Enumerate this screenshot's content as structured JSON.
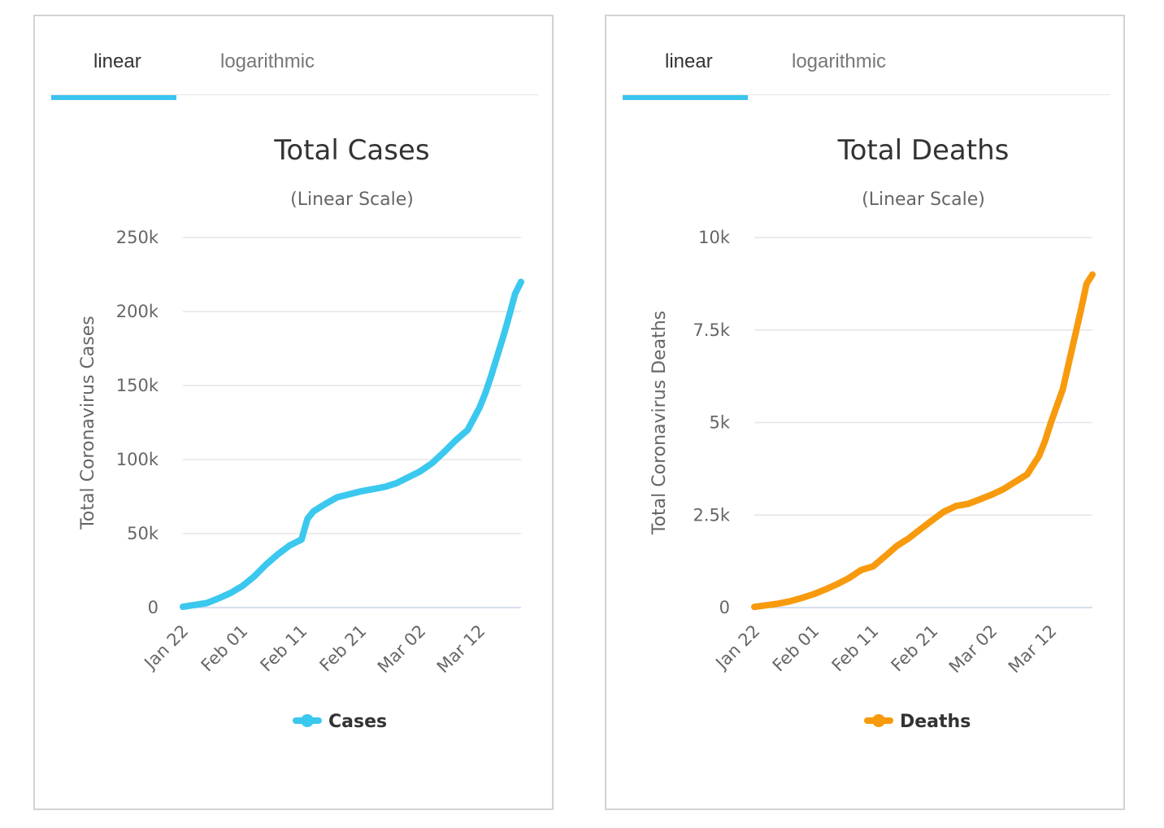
{
  "panels": [
    {
      "tabs": {
        "linear": "linear",
        "logarithmic": "logarithmic"
      },
      "legend": {
        "label": "Cases"
      }
    },
    {
      "tabs": {
        "linear": "linear",
        "logarithmic": "logarithmic"
      },
      "legend": {
        "label": "Deaths"
      }
    }
  ],
  "chart_data": [
    {
      "type": "line",
      "title": "Total Cases",
      "subtitle": "(Linear Scale)",
      "ylabel": "Total Coronavirus Cases",
      "xlabel": "",
      "color": "#3bc8ef",
      "ylim": [
        0,
        250000
      ],
      "yticks": [
        0,
        50000,
        100000,
        150000,
        200000,
        250000
      ],
      "ytick_labels": [
        "0",
        "50k",
        "100k",
        "150k",
        "200k",
        "250k"
      ],
      "xtick_days": [
        0,
        10,
        20,
        30,
        40,
        50
      ],
      "xtick_labels": [
        "Jan 22",
        "Feb 01",
        "Feb 11",
        "Feb 21",
        "Mar 02",
        "Mar 12"
      ],
      "xlim": [
        0,
        57
      ],
      "series": [
        {
          "name": "Cases",
          "x": [
            0,
            4,
            6,
            8,
            10,
            12,
            14,
            16,
            18,
            20,
            20.5,
            21,
            22,
            24,
            26,
            28,
            30,
            32,
            34,
            36,
            38,
            40,
            42,
            44,
            46,
            48,
            50,
            51,
            52,
            53,
            54,
            55,
            56,
            57
          ],
          "values": [
            550,
            3000,
            6200,
            9800,
            14500,
            21000,
            29000,
            36000,
            42000,
            46000,
            53000,
            60000,
            65000,
            70000,
            74500,
            76500,
            78500,
            80000,
            81500,
            84000,
            88000,
            92000,
            97500,
            105000,
            113000,
            120000,
            135000,
            145000,
            157000,
            170000,
            183000,
            197000,
            212000,
            220000
          ]
        }
      ]
    },
    {
      "type": "line",
      "title": "Total Deaths",
      "subtitle": "(Linear Scale)",
      "ylabel": "Total Coronavirus Deaths",
      "xlabel": "",
      "color": "#f79a0d",
      "ylim": [
        0,
        10000
      ],
      "yticks": [
        0,
        2500,
        5000,
        7500,
        10000
      ],
      "ytick_labels": [
        "0",
        "2.5k",
        "5k",
        "7.5k",
        "10k"
      ],
      "xtick_days": [
        0,
        10,
        20,
        30,
        40,
        50
      ],
      "xtick_labels": [
        "Jan 22",
        "Feb 01",
        "Feb 11",
        "Feb 21",
        "Mar 02",
        "Mar 12"
      ],
      "xlim": [
        0,
        57
      ],
      "series": [
        {
          "name": "Deaths",
          "x": [
            0,
            4,
            6,
            8,
            10,
            12,
            14,
            16,
            18,
            20,
            22,
            24,
            26,
            28,
            30,
            32,
            33,
            34,
            36,
            38,
            40,
            42,
            44,
            46,
            47,
            48,
            49,
            50,
            51,
            52,
            53,
            54,
            55,
            56,
            57
          ],
          "values": [
            17,
            106,
            170,
            259,
            362,
            493,
            636,
            803,
            1016,
            1113,
            1383,
            1665,
            1868,
            2118,
            2360,
            2595,
            2666,
            2744,
            2800,
            2924,
            3050,
            3200,
            3400,
            3600,
            3850,
            4100,
            4500,
            5000,
            5450,
            5900,
            6600,
            7300,
            8000,
            8750,
            9000
          ]
        }
      ]
    }
  ]
}
